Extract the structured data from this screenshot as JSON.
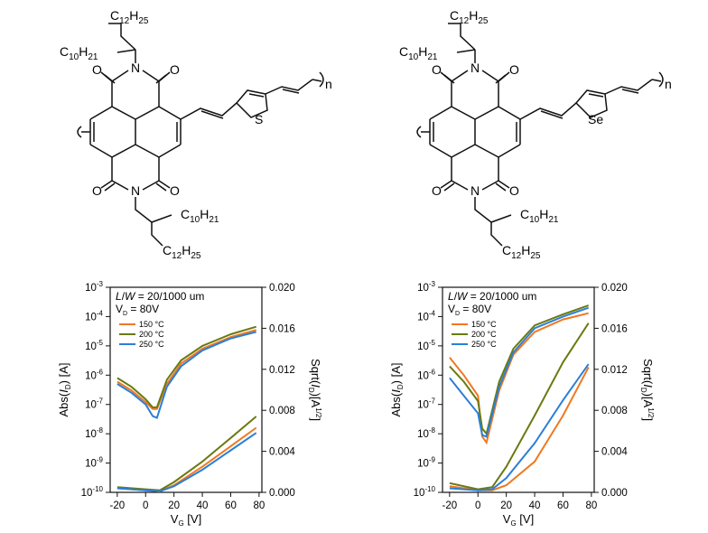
{
  "structures": [
    {
      "heteroatom": "S",
      "labels": {
        "top_chain_a": "C12H25",
        "top_chain_b": "C10H21",
        "bottom_chain_a": "C10H21",
        "bottom_chain_b": "C12H25",
        "repeat": "n"
      }
    },
    {
      "heteroatom": "Se",
      "labels": {
        "top_chain_a": "C12H25",
        "top_chain_b": "C10H21",
        "bottom_chain_a": "C10H21",
        "bottom_chain_b": "C12H25",
        "repeat": "n"
      }
    }
  ],
  "chart_data": [
    {
      "type": "line",
      "ylabel": "Abs(I_D) [A]",
      "y2label": "Sqrt(I_D)[A^1/2]",
      "xlabel": "V_G [V]",
      "xlim": [
        -25,
        82
      ],
      "ylim": [
        1e-10,
        0.001
      ],
      "y_log": true,
      "y2lim": [
        0,
        0.02
      ],
      "xticks": [
        "-20",
        "0",
        "20",
        "40",
        "60",
        "80"
      ],
      "yticks": [
        "10-3",
        "10-4",
        "10-5",
        "10-6",
        "10-7",
        "10-8",
        "10-9",
        "10-10"
      ],
      "y2ticks": [
        "0.020",
        "0.016",
        "0.012",
        "0.008",
        "0.004",
        "0.000"
      ],
      "annotation": {
        "lw": "L/W = 20/1000 um",
        "vd": "VD = 80V"
      },
      "legend_position": "top-left",
      "series": [
        {
          "name": "150 °C",
          "color": "#f07820",
          "transfer": {
            "x": [
              -20,
              -10,
              0,
              5,
              8,
              15,
              25,
              40,
              60,
              78
            ],
            "y": [
              6e-07,
              3e-07,
              1.2e-07,
              7e-08,
              7e-08,
              5e-07,
              2.5e-06,
              8e-06,
              2e-05,
              3.5e-05
            ]
          },
          "sqrt": {
            "x": [
              -20,
              0,
              10,
              20,
              40,
              60,
              78
            ],
            "y": [
              0.0004,
              0.0002,
              0.0001,
              0.0007,
              0.0025,
              0.0045,
              0.0063
            ]
          }
        },
        {
          "name": "200 °C",
          "color": "#6a7a10",
          "transfer": {
            "x": [
              -20,
              -10,
              0,
              5,
              8,
              15,
              25,
              40,
              60,
              78
            ],
            "y": [
              8e-07,
              4e-07,
              1.5e-07,
              8e-08,
              8e-08,
              7e-07,
              3.2e-06,
              1e-05,
              2.5e-05,
              4.5e-05
            ]
          },
          "sqrt": {
            "x": [
              -20,
              0,
              10,
              20,
              40,
              60,
              78
            ],
            "y": [
              0.0005,
              0.0003,
              0.0002,
              0.001,
              0.003,
              0.0053,
              0.0074
            ]
          }
        },
        {
          "name": "250 °C",
          "color": "#2a7fd8",
          "transfer": {
            "x": [
              -20,
              -10,
              0,
              5,
              8,
              15,
              25,
              40,
              60,
              78
            ],
            "y": [
              5e-07,
              2.5e-07,
              1e-07,
              4e-08,
              3.5e-08,
              4e-07,
              2e-06,
              7e-06,
              1.8e-05,
              3e-05
            ]
          },
          "sqrt": {
            "x": [
              -20,
              0,
              10,
              20,
              40,
              60,
              78
            ],
            "y": [
              0.0004,
              0.0002,
              0.0001,
              0.0006,
              0.0022,
              0.0041,
              0.0058
            ]
          }
        }
      ]
    },
    {
      "type": "line",
      "ylabel": "Abs(I_D) [A]",
      "y2label": "Sqrt(I_D)[A^1/2]",
      "xlabel": "V_G [V]",
      "xlim": [
        -25,
        82
      ],
      "ylim": [
        1e-10,
        0.001
      ],
      "y_log": true,
      "y2lim": [
        0,
        0.02
      ],
      "xticks": [
        "-20",
        "0",
        "20",
        "40",
        "60",
        "80"
      ],
      "yticks": [
        "10-3",
        "10-4",
        "10-5",
        "10-6",
        "10-7",
        "10-8",
        "10-9",
        "10-10"
      ],
      "y2ticks": [
        "0.020",
        "0.016",
        "0.012",
        "0.008",
        "0.004",
        "0.000"
      ],
      "annotation": {
        "lw": "L/W = 20/1000 um",
        "vd": "VD = 80V"
      },
      "legend_position": "top-left",
      "series": [
        {
          "name": "150 °C",
          "color": "#f07820",
          "transfer": {
            "x": [
              -20,
              -10,
              0,
              3,
              6,
              15,
              25,
              40,
              60,
              78
            ],
            "y": [
              4e-06,
              1e-06,
              2e-07,
              8e-09,
              5e-09,
              3e-07,
              5e-06,
              3e-05,
              8e-05,
              0.00013
            ]
          },
          "sqrt": {
            "x": [
              -20,
              0,
              10,
              20,
              40,
              60,
              78
            ],
            "y": [
              0.0006,
              0.0002,
              0.0002,
              0.0007,
              0.003,
              0.0075,
              0.0122
            ]
          }
        },
        {
          "name": "200 °C",
          "color": "#6a7a10",
          "transfer": {
            "x": [
              -20,
              -10,
              0,
              3,
              6,
              15,
              25,
              40,
              60,
              78
            ],
            "y": [
              2e-06,
              6e-07,
              1.3e-07,
              1.5e-08,
              1e-08,
              6e-07,
              8e-06,
              5e-05,
              0.00012,
              0.00024
            ]
          },
          "sqrt": {
            "x": [
              -20,
              0,
              10,
              20,
              40,
              60,
              78
            ],
            "y": [
              0.0009,
              0.0003,
              0.0005,
              0.0025,
              0.0075,
              0.0127,
              0.0165
            ]
          }
        },
        {
          "name": "250 °C",
          "color": "#2a7fd8",
          "transfer": {
            "x": [
              -20,
              -10,
              0,
              3,
              6,
              15,
              25,
              40,
              60,
              78
            ],
            "y": [
              8e-07,
              2e-07,
              5e-08,
              9e-09,
              8e-09,
              4e-07,
              6e-06,
              4e-05,
              0.0001,
              0.0002
            ]
          },
          "sqrt": {
            "x": [
              -20,
              0,
              10,
              20,
              40,
              60,
              78
            ],
            "y": [
              0.0004,
              0.0002,
              0.0003,
              0.0014,
              0.0048,
              0.009,
              0.0125
            ]
          }
        }
      ]
    }
  ]
}
